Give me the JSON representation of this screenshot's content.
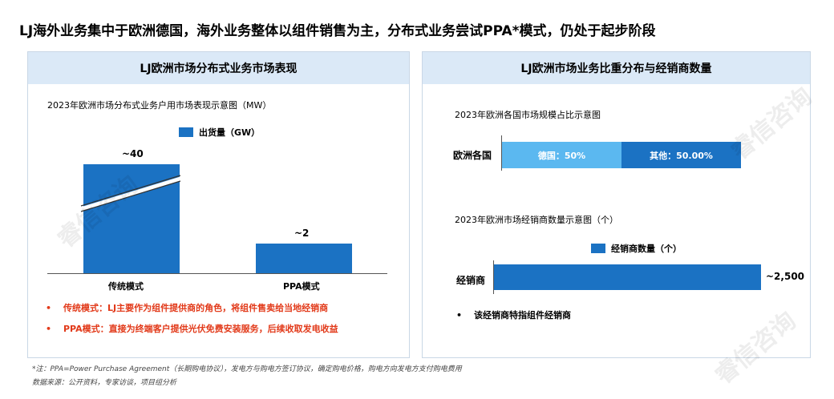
{
  "title": "LJ海外业务集中于欧洲德国，海外业务整体以组件销售为主，分布式业务尝试PPA*模式，仍处于起步阶段",
  "left_panel": {
    "header": "LJ欧洲市场分布式业务市场表现",
    "subtitle": "2023年欧洲市场分布式业务户用市场表现示意图（MW）",
    "legend": "出货量（GW）",
    "bars": [
      {
        "label": "传统模式",
        "value_label": "~40"
      },
      {
        "label": "PPA模式",
        "value_label": "~2"
      }
    ],
    "notes": [
      "传统模式：LJ主要作为组件提供商的角色，将组件售卖给当地经销商",
      "PPA模式：直接为终端客户提供光伏免费安装服务，后续收取发电收益"
    ]
  },
  "right_panel": {
    "header": "LJ欧洲市场业务比重分布与经销商数量",
    "subtitle1": "2023年欧洲各国市场规模占比示意图",
    "stack": {
      "row_label": "欧洲各国",
      "segments": [
        {
          "label": "德国：50%",
          "value": 50,
          "color": "#5bb8f0"
        },
        {
          "label": "其他：50.00%",
          "value": 50,
          "color": "#1b72c3"
        }
      ]
    },
    "subtitle2": "2023年欧洲市场经销商数量示意图（个）",
    "legend2": "经销商数量（个）",
    "dealer": {
      "row_label": "经销商",
      "value_label": "~2,500"
    },
    "bullet": "该经销商特指组件经销商"
  },
  "footer": {
    "note": "*注：PPA=Power Purchase Agreement（长期购电协议），发电方与购电方签订协议，确定购电价格，购电方向发电方支付购电费用",
    "source": "数据来源：公开资料，专家访谈，项目组分析"
  },
  "watermark": "睿信咨询",
  "chart_data": [
    {
      "type": "bar",
      "title": "2023年欧洲市场分布式业务户用市场表现示意图（MW）",
      "categories": [
        "传统模式",
        "PPA模式"
      ],
      "series": [
        {
          "name": "出货量（GW）",
          "values": [
            40,
            2
          ]
        }
      ],
      "data_labels": [
        "~40",
        "~2"
      ],
      "axis_break": true
    },
    {
      "type": "bar",
      "orientation": "horizontal",
      "stacked": true,
      "title": "2023年欧洲各国市场规模占比示意图",
      "categories": [
        "欧洲各国"
      ],
      "series": [
        {
          "name": "德国",
          "values": [
            50
          ]
        },
        {
          "name": "其他",
          "values": [
            50
          ]
        }
      ]
    },
    {
      "type": "bar",
      "orientation": "horizontal",
      "title": "2023年欧洲市场经销商数量示意图（个）",
      "categories": [
        "经销商"
      ],
      "series": [
        {
          "name": "经销商数量（个）",
          "values": [
            2500
          ]
        }
      ],
      "data_labels": [
        "~2,500"
      ]
    }
  ]
}
